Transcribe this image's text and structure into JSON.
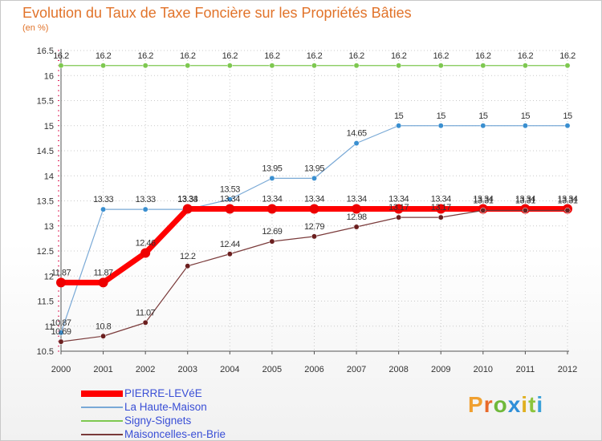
{
  "header": {
    "title": "Evolution du Taux de Taxe Foncière sur les Propriétés Bâties",
    "subtitle": "(en %)"
  },
  "brand": {
    "logo_text": "Proxiti"
  },
  "colors": {
    "title": "#e1732a",
    "grid": "#c9c9c9",
    "axis": "#555555",
    "tick_label": "#333333",
    "minor_tick": "#e0205a",
    "legend_text": "#3a4fd6"
  },
  "chart_data": {
    "type": "line",
    "title": "Evolution du Taux de Taxe Foncière sur les Propriétés Bâties",
    "ylabel": "(en %)",
    "xlabel": "",
    "x": [
      "2000",
      "2001",
      "2002",
      "2003",
      "2004",
      "2005",
      "2006",
      "2007",
      "2008",
      "2009",
      "2010",
      "2011",
      "2012"
    ],
    "ylim": [
      10.5,
      16.5
    ],
    "y_ticks": [
      "10.5",
      "11",
      "11.5",
      "12",
      "12.5",
      "13",
      "13.5",
      "14",
      "14.5",
      "15",
      "15.5",
      "16",
      "16.5"
    ],
    "grid": true,
    "legend_position": "bottom-left",
    "series": [
      {
        "name": "Signy-Signets",
        "color": "#7ec850",
        "marker_color": "#7ec850",
        "width": 1.2,
        "values": [
          16.2,
          16.2,
          16.2,
          16.2,
          16.2,
          16.2,
          16.2,
          16.2,
          16.2,
          16.2,
          16.2,
          16.2,
          16.2
        ],
        "labels": [
          "16.2",
          "16.2",
          "16.2",
          "16.2",
          "16.2",
          "16.2",
          "16.2",
          "16.2",
          "16.2",
          "16.2",
          "16.2",
          "16.2",
          "16.2"
        ]
      },
      {
        "name": "La Haute-Maison",
        "color": "#79a9d6",
        "marker_color": "#3a8fd0",
        "width": 1.2,
        "values": [
          10.87,
          13.33,
          13.33,
          13.33,
          13.53,
          13.95,
          13.95,
          14.65,
          15,
          15,
          15,
          15,
          15
        ],
        "labels": [
          "10.87",
          "13.33",
          "13.33",
          "13.33",
          "13.53",
          "13.95",
          "13.95",
          "14.65",
          "15",
          "15",
          "15",
          "15",
          "15"
        ]
      },
      {
        "name": "PIERRE-LEVéE",
        "color": "#ff0000",
        "marker_color": "#ee0000",
        "width": 7,
        "values": [
          11.87,
          11.87,
          12.46,
          13.34,
          13.34,
          13.34,
          13.34,
          13.34,
          13.34,
          13.34,
          13.34,
          13.34,
          13.34
        ],
        "labels": [
          "11.87",
          "11.87",
          "12.46",
          "13.34",
          "13.34",
          "13.34",
          "13.34",
          "13.34",
          "13.34",
          "13.34",
          "13.34",
          "13.34",
          "13.34"
        ]
      },
      {
        "name": "Maisoncelles-en-Brie",
        "color": "#7a3a3a",
        "marker_color": "#6b1f1f",
        "width": 1.2,
        "values": [
          10.69,
          10.8,
          11.07,
          12.2,
          12.44,
          12.69,
          12.79,
          12.98,
          13.17,
          13.17,
          13.31,
          13.31,
          13.31
        ],
        "labels": [
          "10.69",
          "10.8",
          "11.07",
          "12.2",
          "12.44",
          "12.69",
          "12.79",
          "12.98",
          "13.17",
          "13.17",
          "13.31",
          "13.31",
          "13.31"
        ]
      }
    ],
    "legend_order": [
      "PIERRE-LEVéE",
      "La Haute-Maison",
      "Signy-Signets",
      "Maisoncelles-en-Brie"
    ]
  }
}
